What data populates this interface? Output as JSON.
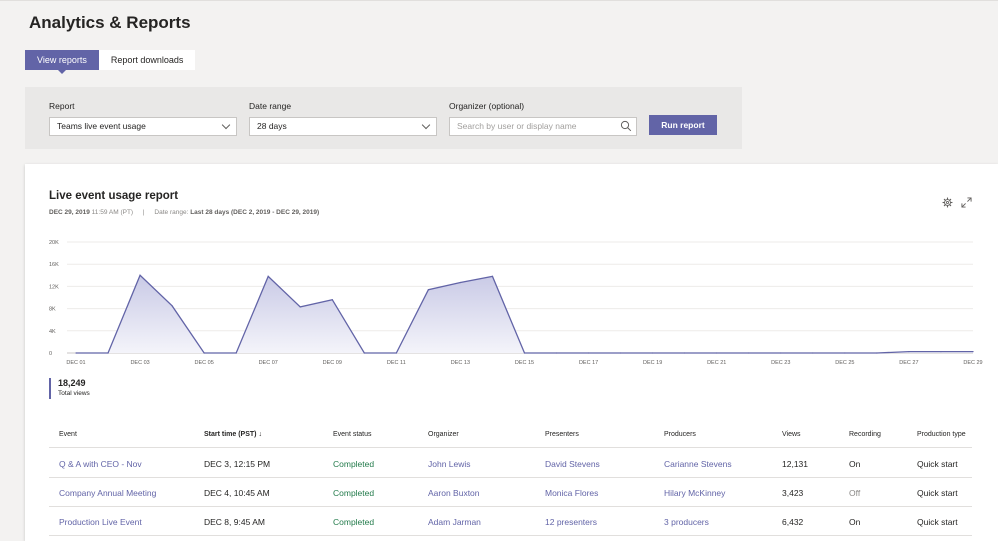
{
  "page": {
    "title": "Analytics & Reports"
  },
  "tabs": [
    {
      "label": "View reports",
      "active": true
    },
    {
      "label": "Report downloads",
      "active": false
    }
  ],
  "filters": {
    "report": {
      "label": "Report",
      "value": "Teams live event usage"
    },
    "date_range": {
      "label": "Date range",
      "value": "28 days"
    },
    "organizer": {
      "label": "Organizer (optional)",
      "placeholder": "Search by user or display name"
    },
    "run_button": "Run report"
  },
  "report": {
    "title": "Live event usage report",
    "timestamp_date": "DEC 29, 2019",
    "timestamp_time": "11:59 AM (PT)",
    "range_prefix": "Date range:",
    "range_value": "Last 28 days (DEC 2, 2019 - DEC 29, 2019)",
    "total_views": "18,249",
    "total_views_label": "Total views"
  },
  "icons": {
    "settings": "gear-icon",
    "expand": "expand-icon",
    "search": "search-icon"
  },
  "colors": {
    "accent": "#6264a7",
    "completed": "#237b4b",
    "area_fill": "#e6e6f2"
  },
  "chart_data": {
    "type": "area",
    "x_tick_labels": [
      "DEC 01",
      "DEC 03",
      "DEC 05",
      "DEC 07",
      "DEC 09",
      "DEC 11",
      "DEC 13",
      "DEC 15",
      "DEC 17",
      "DEC 19",
      "DEC 21",
      "DEC 23",
      "DEC 25",
      "DEC 27",
      "DEC 29"
    ],
    "y_tick_labels": [
      "0",
      "4K",
      "8K",
      "12K",
      "16K",
      "20K"
    ],
    "ylim": [
      0,
      20000
    ],
    "grid": true,
    "series": [
      {
        "values": [
          [
            1,
            0
          ],
          [
            2,
            0
          ],
          [
            3,
            14000
          ],
          [
            4,
            8500
          ],
          [
            5,
            0
          ],
          [
            6,
            0
          ],
          [
            7,
            13800
          ],
          [
            8,
            8300
          ],
          [
            9,
            9600
          ],
          [
            10,
            0
          ],
          [
            11,
            0
          ],
          [
            12,
            11400
          ],
          [
            13,
            12700
          ],
          [
            14,
            13800
          ],
          [
            15,
            0
          ],
          [
            16,
            0
          ],
          [
            17,
            0
          ],
          [
            18,
            0
          ],
          [
            19,
            0
          ],
          [
            20,
            0
          ],
          [
            21,
            0
          ],
          [
            22,
            0
          ],
          [
            23,
            0
          ],
          [
            24,
            0
          ],
          [
            25,
            0
          ],
          [
            26,
            0
          ],
          [
            27,
            250
          ],
          [
            28,
            250
          ],
          [
            29,
            250
          ]
        ]
      }
    ]
  },
  "table": {
    "columns": [
      "Event",
      "Start time (PST) ↓",
      "Event status",
      "Organizer",
      "Presenters",
      "Producers",
      "Views",
      "Recording",
      "Production type"
    ],
    "rows": [
      [
        "Q & A with CEO - Nov",
        "DEC 3, 12:15 PM",
        "Completed",
        "John Lewis",
        "David Stevens",
        "Carianne Stevens",
        "12,131",
        "On",
        "Quick start"
      ],
      [
        "Company Annual Meeting",
        "DEC 4, 10:45 AM",
        "Completed",
        "Aaron Buxton",
        "Monica Flores",
        "Hilary McKinney",
        "3,423",
        "Off",
        "Quick start"
      ],
      [
        "Production Live Event",
        "DEC 8, 9:45 AM",
        "Completed",
        "Adam Jarman",
        "12 presenters",
        "3 producers",
        "6,432",
        "On",
        "Quick start"
      ]
    ]
  }
}
